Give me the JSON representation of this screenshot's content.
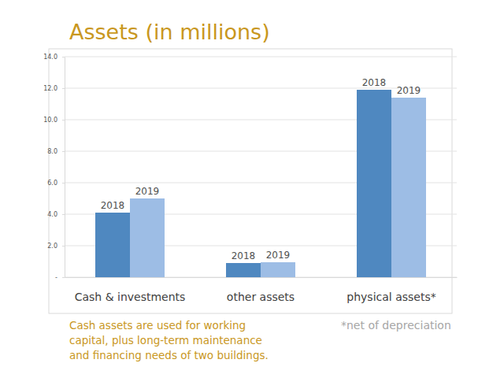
{
  "chart_data": {
    "type": "bar",
    "title": "Assets (in millions)",
    "categories": [
      "Cash & investments",
      "other assets",
      "physical assets*"
    ],
    "series": [
      {
        "name": "2018",
        "color": "#4f88c0",
        "values": [
          4.1,
          0.9,
          11.9
        ]
      },
      {
        "name": "2019",
        "color": "#9dbde5",
        "values": [
          5.0,
          0.95,
          11.4
        ]
      }
    ],
    "ylim": [
      0,
      14
    ],
    "yticks": [
      {
        "value": 0,
        "label": "-"
      },
      {
        "value": 2,
        "label": "2.0"
      },
      {
        "value": 4,
        "label": "4.0"
      },
      {
        "value": 6,
        "label": "6.0"
      },
      {
        "value": 8,
        "label": "8.0"
      },
      {
        "value": 10,
        "label": "10.0"
      },
      {
        "value": 12,
        "label": "12.0"
      },
      {
        "value": 14,
        "label": "14.0"
      }
    ],
    "grid": true,
    "annotations": [
      [
        "Cash assets are used for working",
        "capital, plus long-term maintenance",
        "and financing needs of two buildings."
      ],
      [
        "*net of depreciation"
      ]
    ]
  }
}
